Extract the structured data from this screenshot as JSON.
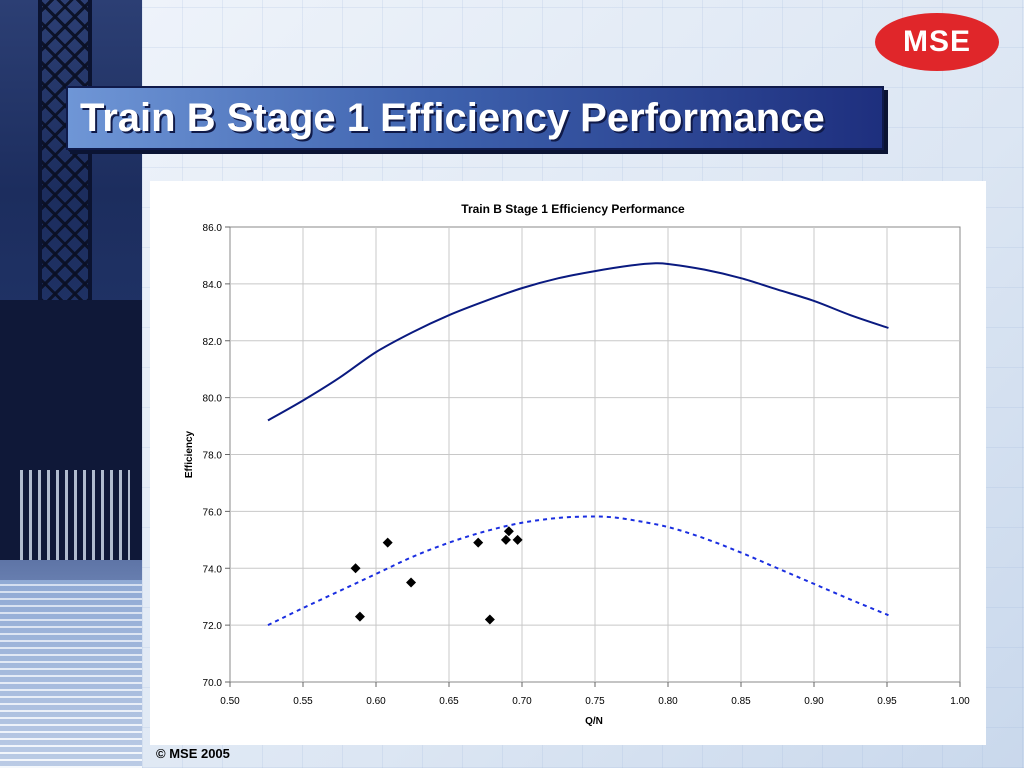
{
  "slide": {
    "title": "Train B Stage 1 Efficiency Performance",
    "logo": "MSE",
    "footer": "© MSE 2005"
  },
  "colors": {
    "title_start": "#6f96d6",
    "title_end": "#1e2f7e",
    "logo_red": "#e0262a",
    "curve": "#0a1a80",
    "dashed": "#1a2ee0",
    "points": "#000000"
  },
  "chart_data": {
    "type": "scatter",
    "title": "Train B Stage 1 Efficiency Performance",
    "xlabel": "Q/N",
    "ylabel": "Efficiency",
    "xlim": [
      0.5,
      1.0
    ],
    "ylim": [
      70.0,
      86.0
    ],
    "x_ticks": [
      "0.50",
      "0.55",
      "0.60",
      "0.65",
      "0.70",
      "0.75",
      "0.80",
      "0.85",
      "0.90",
      "0.95",
      "1.00"
    ],
    "y_ticks": [
      "70.0",
      "72.0",
      "74.0",
      "76.0",
      "78.0",
      "80.0",
      "82.0",
      "84.0",
      "86.0"
    ],
    "grid": true,
    "series": [
      {
        "style": "solid-line",
        "x": [
          0.526,
          0.55,
          0.575,
          0.6,
          0.625,
          0.65,
          0.675,
          0.7,
          0.725,
          0.75,
          0.775,
          0.79,
          0.8,
          0.825,
          0.85,
          0.875,
          0.9,
          0.925,
          0.951
        ],
        "y": [
          79.2,
          79.9,
          80.7,
          81.6,
          82.3,
          82.9,
          83.4,
          83.85,
          84.2,
          84.45,
          84.65,
          84.72,
          84.7,
          84.5,
          84.2,
          83.8,
          83.4,
          82.9,
          82.45
        ]
      },
      {
        "style": "dashed-line",
        "x": [
          0.526,
          0.55,
          0.575,
          0.6,
          0.625,
          0.65,
          0.675,
          0.7,
          0.725,
          0.745,
          0.76,
          0.775,
          0.8,
          0.825,
          0.85,
          0.875,
          0.9,
          0.925,
          0.951
        ],
        "y": [
          72.0,
          72.6,
          73.2,
          73.8,
          74.4,
          74.9,
          75.3,
          75.6,
          75.77,
          75.82,
          75.8,
          75.7,
          75.45,
          75.05,
          74.55,
          74.0,
          73.45,
          72.9,
          72.35
        ]
      },
      {
        "style": "markers",
        "x": [
          0.586,
          0.589,
          0.608,
          0.624,
          0.67,
          0.678,
          0.689,
          0.691,
          0.697
        ],
        "y": [
          74.0,
          72.3,
          74.9,
          73.5,
          74.9,
          72.2,
          75.0,
          75.3,
          75.0
        ]
      }
    ]
  }
}
